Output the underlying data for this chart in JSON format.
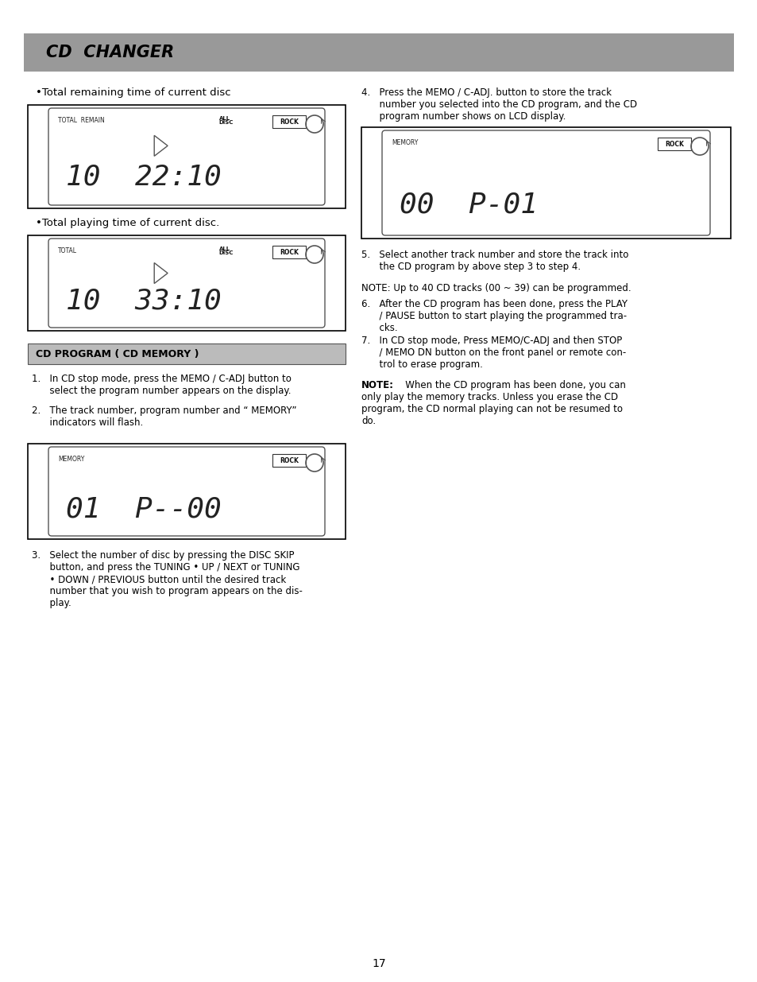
{
  "title": "CD  CHANGER",
  "title_bg": "#999999",
  "page_bg": "#ffffff",
  "page_number": "17",
  "bullet1": "•Total remaining time of current disc",
  "display1_main": "10  22:10",
  "display1_label_tl": "TOTAL  REMAIN",
  "display1_label_tr": "ALL\nDISC",
  "display1_has_play": true,
  "display1_has_rock": true,
  "bullet2": "•Total playing time of current disc.",
  "display2_main": "10  33:10",
  "display2_label_tl": "TOTAL",
  "display2_label_tr": "ALL\nDISC",
  "display2_has_play": true,
  "display2_has_rock": true,
  "section_header": "CD PROGRAM ( CD MEMORY )",
  "para1a": "1.   In CD stop mode, press the MEMO / C-ADJ button to",
  "para1b": "      select the program number appears on the display.",
  "para2a": "2.   The track number, program number and “ MEMORY”",
  "para2b": "      indicators will flash.",
  "display3_main": "01  P--00",
  "display3_label_tl": "MEMORY",
  "display3_has_play": false,
  "display3_has_rock": true,
  "para3_lines": [
    "3.   Select the number of disc by pressing the DISC SKIP",
    "      button, and press the TUNING • UP / NEXT or TUNING",
    "      • DOWN / PREVIOUS button until the desired track",
    "      number that you wish to program appears on the dis-",
    "      play."
  ],
  "r_para4a": "4.   Press the MEMO / C-ADJ. button to store the track",
  "r_para4b": "      number you selected into the CD program, and the CD",
  "r_para4c": "      program number shows on LCD display.",
  "display4_main": "00  P-01",
  "display4_label_tl": "MEMORY",
  "display4_has_play": false,
  "display4_has_rock": true,
  "r_para5a": "5.   Select another track number and store the track into",
  "r_para5b": "      the CD program by above step 3 to step 4.",
  "r_note1": "NOTE: Up to 40 CD tracks (00 ~ 39) can be programmed.",
  "r_para6a": "6.   After the CD program has been done, press the PLAY",
  "r_para6b": "      / PAUSE button to start playing the programmed tra-",
  "r_para6c": "      cks.",
  "r_para7a": "7.   In CD stop mode, Press MEMO/C-ADJ and then STOP",
  "r_para7b": "      / MEMO DN button on the front panel or remote con-",
  "r_para7c": "      trol to erase program.",
  "r_note2_lines": [
    "   When the CD program has been done, you can",
    "only play the memory tracks. Unless you erase the CD",
    "program, the CD normal playing can not be resumed to",
    "do."
  ]
}
